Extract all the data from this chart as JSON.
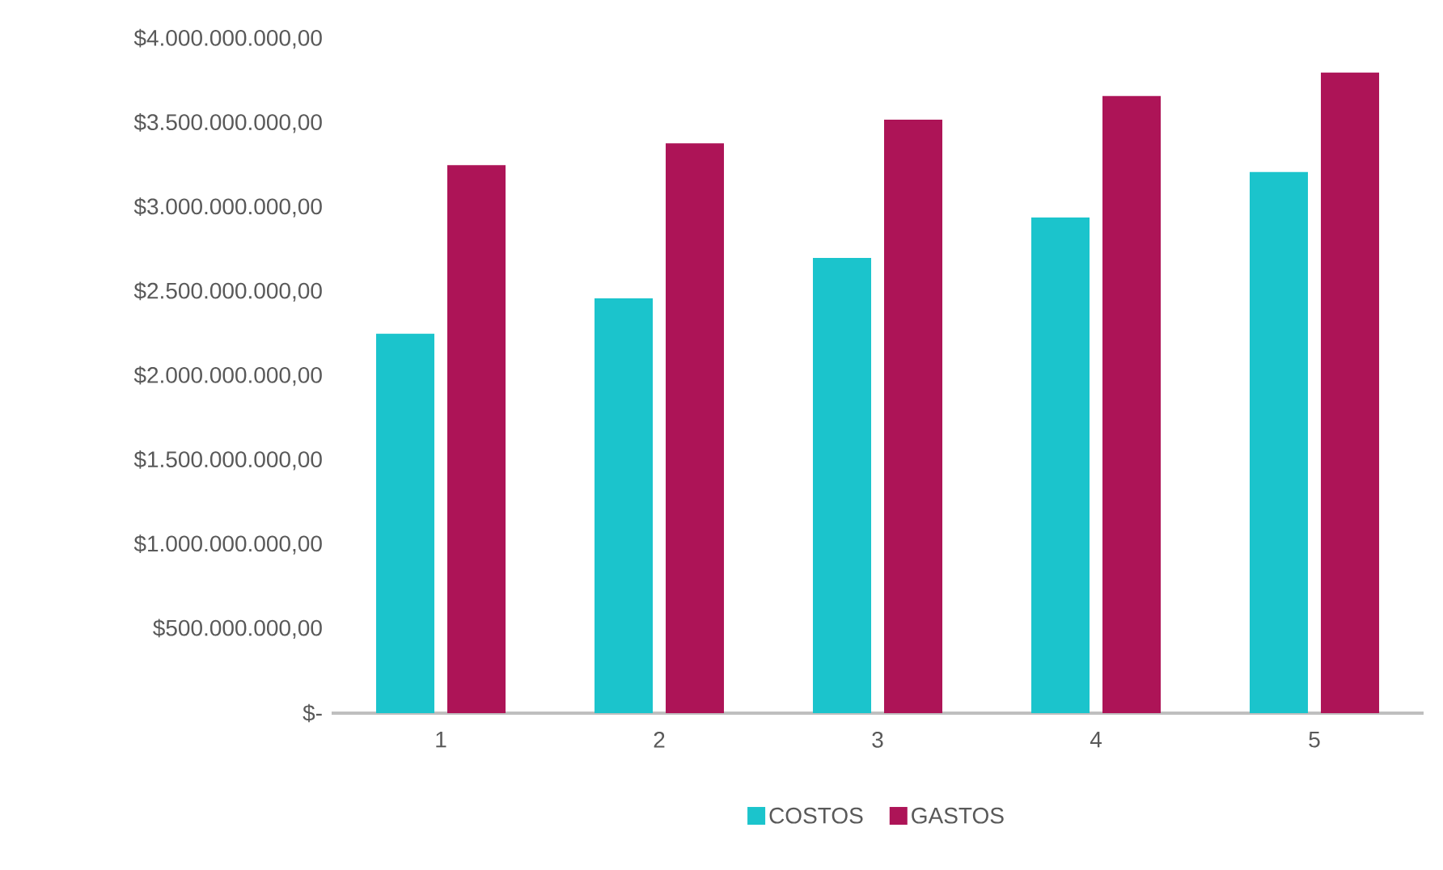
{
  "chart_data": {
    "type": "bar",
    "categories": [
      "1",
      "2",
      "3",
      "4",
      "5"
    ],
    "series": [
      {
        "name": "COSTOS",
        "color": "#1bc4cc",
        "values": [
          2250000000,
          2460000000,
          2700000000,
          2940000000,
          3210000000
        ]
      },
      {
        "name": "GASTOS",
        "color": "#ad1457",
        "values": [
          3250000000,
          3380000000,
          3520000000,
          3660000000,
          3800000000
        ]
      }
    ],
    "ylim": [
      0,
      4000000000
    ],
    "yticks": [
      {
        "value": 0,
        "label": "$-"
      },
      {
        "value": 500000000,
        "label": "$500.000.000,00"
      },
      {
        "value": 1000000000,
        "label": "$1.000.000.000,00"
      },
      {
        "value": 1500000000,
        "label": "$1.500.000.000,00"
      },
      {
        "value": 2000000000,
        "label": "$2.000.000.000,00"
      },
      {
        "value": 2500000000,
        "label": "$2.500.000.000,00"
      },
      {
        "value": 3000000000,
        "label": "$3.000.000.000,00"
      },
      {
        "value": 3500000000,
        "label": "$3.500.000.000,00"
      },
      {
        "value": 4000000000,
        "label": "$4.000.000.000,00"
      }
    ],
    "grid": false,
    "legend": "bottom"
  }
}
